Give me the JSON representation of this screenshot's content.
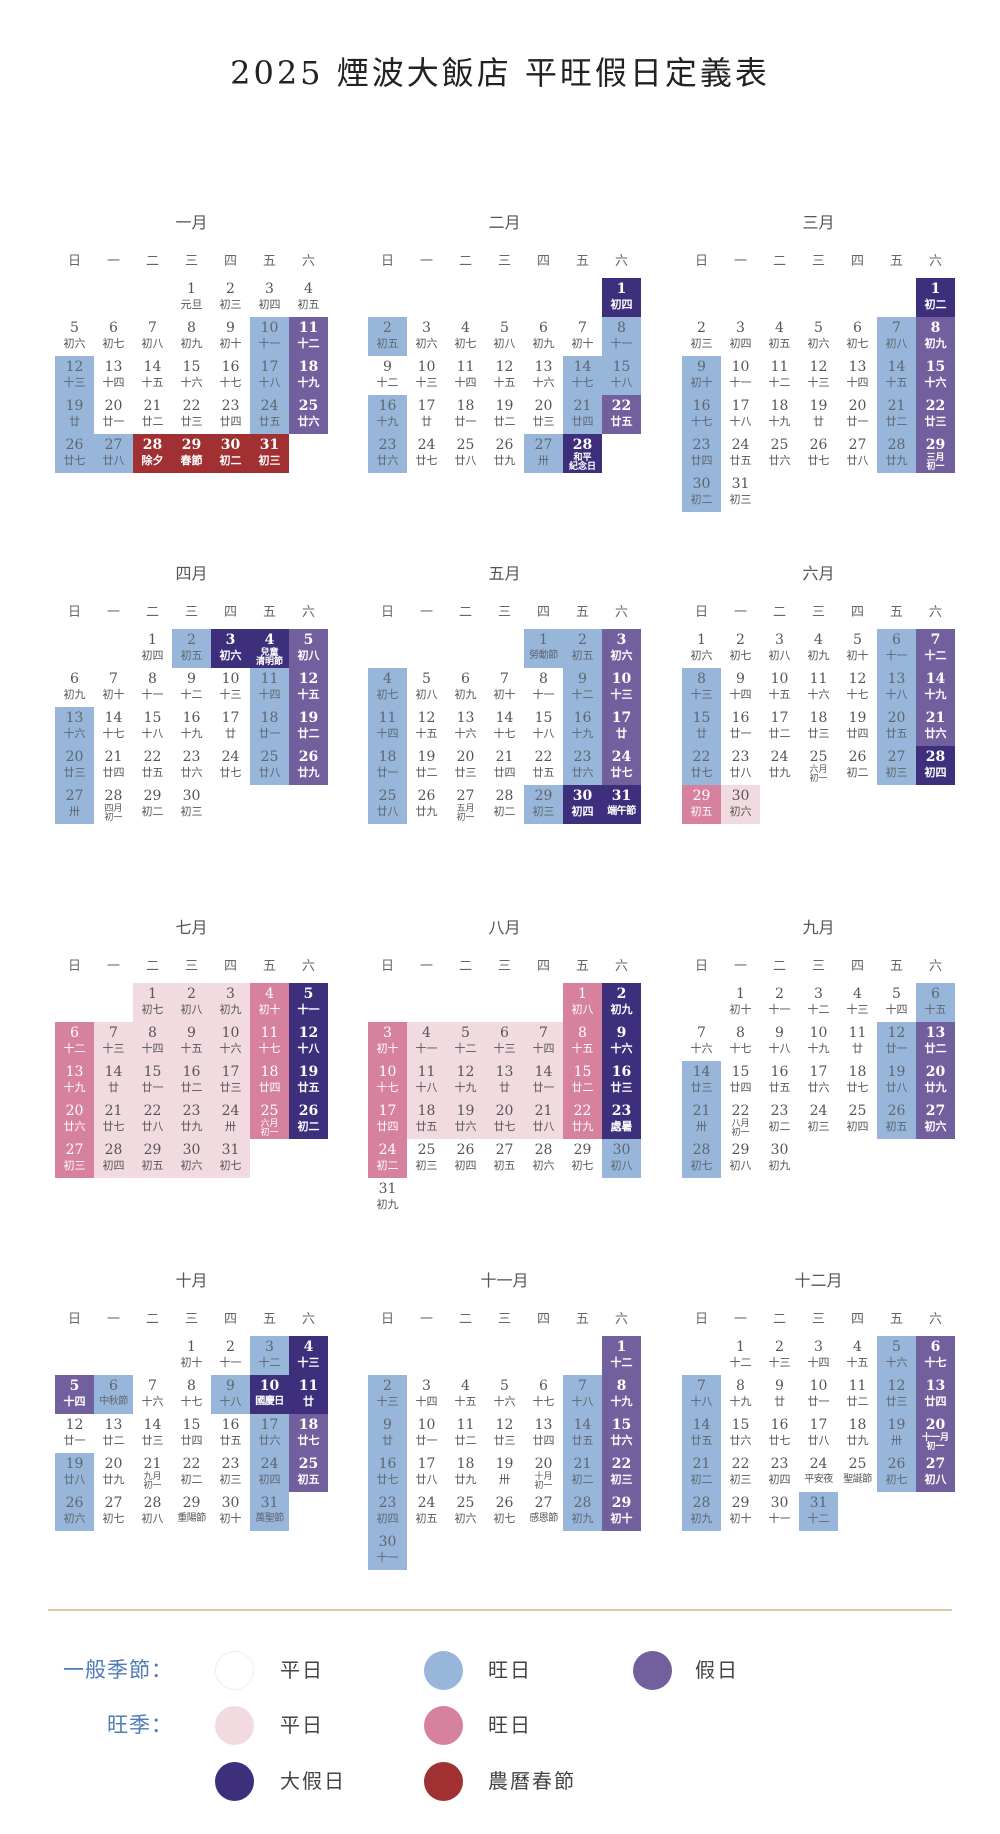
{
  "title": "2025 煙波大飯店 平旺假日定義表",
  "weekdays": [
    "日",
    "一",
    "二",
    "三",
    "四",
    "五",
    "六"
  ],
  "day_type_colors": {
    "n": "#ffffff",
    "b": "#97b6d9",
    "v": "#72609e",
    "d": "#3d2f7c",
    "r": "#a03032",
    "p": "#f2dbe0",
    "m": "#d6829e"
  },
  "months": [
    {
      "name": "一月",
      "start_weekday": 3,
      "types": "nnnnnnnnnbvbnnnnbvbnnnnbvbbrrrr",
      "lunar": [
        "元旦",
        "初三",
        "初四",
        "初五",
        "初六",
        "初七",
        "初八",
        "初九",
        "初十",
        "十一",
        "十二",
        "十三",
        "十四",
        "十五",
        "十六",
        "十七",
        "十八",
        "十九",
        "廿",
        "廿一",
        "廿二",
        "廿三",
        "廿四",
        "廿五",
        "廿六",
        "廿七",
        "廿八",
        "除夕",
        "春節",
        "初二",
        "初三"
      ]
    },
    {
      "name": "二月",
      "start_weekday": 6,
      "types": "dbnnnnnbnnnnnbbbnnnnbvbnnnbd",
      "lunar": [
        "初四",
        "初五",
        "初六",
        "初七",
        "初八",
        "初九",
        "初十",
        "十一",
        "十二",
        "十三",
        "十四",
        "十五",
        "十六",
        "十七",
        "十八",
        "十九",
        "廿",
        "廿一",
        "廿二",
        "廿三",
        "廿四",
        "廿五",
        "廿六",
        "廿七",
        "廿八",
        "廿九",
        "卅",
        "和平\n紀念日"
      ]
    },
    {
      "name": "三月",
      "start_weekday": 6,
      "types": "dnnnnnbvbnnnnbvbnnnnbvbnnnnbvbn",
      "lunar": [
        "初二",
        "初三",
        "初四",
        "初五",
        "初六",
        "初七",
        "初八",
        "初九",
        "初十",
        "十一",
        "十二",
        "十三",
        "十四",
        "十五",
        "十六",
        "十七",
        "十八",
        "十九",
        "廿",
        "廿一",
        "廿二",
        "廿三",
        "廿四",
        "廿五",
        "廿六",
        "廿七",
        "廿八",
        "廿九",
        "三月\n初一",
        "初二",
        "初三"
      ]
    },
    {
      "name": "四月",
      "start_weekday": 2,
      "types": "nbddvnnnnnbvbnnnnbvbnnnnbvbnnn",
      "lunar": [
        "初四",
        "初五",
        "初六",
        "兒童\n清明節",
        "初八",
        "初九",
        "初十",
        "十一",
        "十二",
        "十三",
        "十四",
        "十五",
        "十六",
        "十七",
        "十八",
        "十九",
        "廿",
        "廿一",
        "廿二",
        "廿三",
        "廿四",
        "廿五",
        "廿六",
        "廿七",
        "廿八",
        "廿九",
        "卅",
        "四月\n初一",
        "初二",
        "初三"
      ]
    },
    {
      "name": "五月",
      "start_weekday": 4,
      "types": "bbvbnnnnbvbnnnnbvbnnnnbvbnnnbdd",
      "lunar": [
        "勞動節",
        "初五",
        "初六",
        "初七",
        "初八",
        "初九",
        "初十",
        "十一",
        "十二",
        "十三",
        "十四",
        "十五",
        "十六",
        "十七",
        "十八",
        "十九",
        "廿",
        "廿一",
        "廿二",
        "廿三",
        "廿四",
        "廿五",
        "廿六",
        "廿七",
        "廿八",
        "廿九",
        "五月\n初一",
        "初二",
        "初三",
        "初四",
        "端午節"
      ]
    },
    {
      "name": "六月",
      "start_weekday": 0,
      "types": "nnnnnbvbnnnnbvbnnnnbvbnnnnbdmp",
      "lunar": [
        "初六",
        "初七",
        "初八",
        "初九",
        "初十",
        "十一",
        "十二",
        "十三",
        "十四",
        "十五",
        "十六",
        "十七",
        "十八",
        "十九",
        "廿",
        "廿一",
        "廿二",
        "廿三",
        "廿四",
        "廿五",
        "廿六",
        "廿七",
        "廿八",
        "廿九",
        "六月\n初一",
        "初二",
        "初三",
        "初四",
        "初五",
        "初六"
      ]
    },
    {
      "name": "七月",
      "start_weekday": 2,
      "types": "pppmdmppppmdmppppmdmppppmdmpppp",
      "lunar": [
        "初七",
        "初八",
        "初九",
        "初十",
        "十一",
        "十二",
        "十三",
        "十四",
        "十五",
        "十六",
        "十七",
        "十八",
        "十九",
        "廿",
        "廿一",
        "廿二",
        "廿三",
        "廿四",
        "廿五",
        "廿六",
        "廿七",
        "廿八",
        "廿九",
        "卅",
        "六月\n初一",
        "初二",
        "初三",
        "初四",
        "初五",
        "初六",
        "初七"
      ]
    },
    {
      "name": "八月",
      "start_weekday": 5,
      "types": "mdmppppmdmppppmdmppppmdmnnnnnbn",
      "lunar": [
        "初八",
        "初九",
        "初十",
        "十一",
        "十二",
        "十三",
        "十四",
        "十五",
        "十六",
        "十七",
        "十八",
        "十九",
        "廿",
        "廿一",
        "廿二",
        "廿三",
        "廿四",
        "廿五",
        "廿六",
        "廿七",
        "廿八",
        "廿九",
        "處暑",
        "初二",
        "初三",
        "初四",
        "初五",
        "初六",
        "初七",
        "初八",
        "初九"
      ]
    },
    {
      "name": "九月",
      "start_weekday": 1,
      "types": "nnnnnbnnnnnbvbnnnnbvbnnnnbvbnn",
      "lunar": [
        "初十",
        "十一",
        "十二",
        "十三",
        "十四",
        "十五",
        "十六",
        "十七",
        "十八",
        "十九",
        "廿",
        "廿一",
        "廿二",
        "廿三",
        "廿四",
        "廿五",
        "廿六",
        "廿七",
        "廿八",
        "廿九",
        "卅",
        "八月\n初一",
        "初二",
        "初三",
        "初四",
        "初五",
        "初六",
        "初七",
        "初八",
        "初九"
      ]
    },
    {
      "name": "十月",
      "start_weekday": 3,
      "types": "nnbdvbnnbddnnnnnbvbnnnnbvbnnnnb",
      "lunar": [
        "初十",
        "十一",
        "十二",
        "十三",
        "十四",
        "中秋節",
        "十六",
        "十七",
        "十八",
        "國慶日",
        "廿",
        "廿一",
        "廿二",
        "廿三",
        "廿四",
        "廿五",
        "廿六",
        "廿七",
        "廿八",
        "廿九",
        "九月\n初一",
        "初二",
        "初三",
        "初四",
        "初五",
        "初六",
        "初七",
        "初八",
        "重陽節",
        "初十",
        "萬聖節"
      ]
    },
    {
      "name": "十一月",
      "start_weekday": 6,
      "types": "vbnnnnbvbnnnnbvbnnnnbvbnnnnbvb",
      "lunar": [
        "十二",
        "十三",
        "十四",
        "十五",
        "十六",
        "十七",
        "十八",
        "十九",
        "廿",
        "廿一",
        "廿二",
        "廿三",
        "廿四",
        "廿五",
        "廿六",
        "廿七",
        "廿八",
        "廿九",
        "卅",
        "十月\n初一",
        "初二",
        "初三",
        "初四",
        "初五",
        "初六",
        "初七",
        "感恩節",
        "初九",
        "初十",
        "十一"
      ]
    },
    {
      "name": "十二月",
      "start_weekday": 1,
      "types": "nnnnbvbnnnnbvbnnnnbvbnnnnbvbnnb",
      "lunar": [
        "十二",
        "十三",
        "十四",
        "十五",
        "十六",
        "十七",
        "十八",
        "十九",
        "廿",
        "廿一",
        "廿二",
        "廿三",
        "廿四",
        "廿五",
        "廿六",
        "廿七",
        "廿八",
        "廿九",
        "卅",
        "十一月\n初一",
        "初二",
        "初三",
        "初四",
        "平安夜",
        "聖誕節",
        "初七",
        "初八",
        "初九",
        "初十",
        "十一",
        "十二"
      ]
    }
  ],
  "legend": {
    "general_label": "一般季節：",
    "peak_label": "旺季：",
    "items": [
      {
        "label": "平日",
        "color": "#ffffff"
      },
      {
        "label": "旺日",
        "color": "#97b6d9"
      },
      {
        "label": "假日",
        "color": "#72609e"
      },
      {
        "label": "平日",
        "color": "#f2dbe0"
      },
      {
        "label": "旺日",
        "color": "#d6829e"
      },
      {
        "label": "大假日",
        "color": "#3d2f7c"
      },
      {
        "label": "農曆春節",
        "color": "#a03032"
      }
    ]
  }
}
